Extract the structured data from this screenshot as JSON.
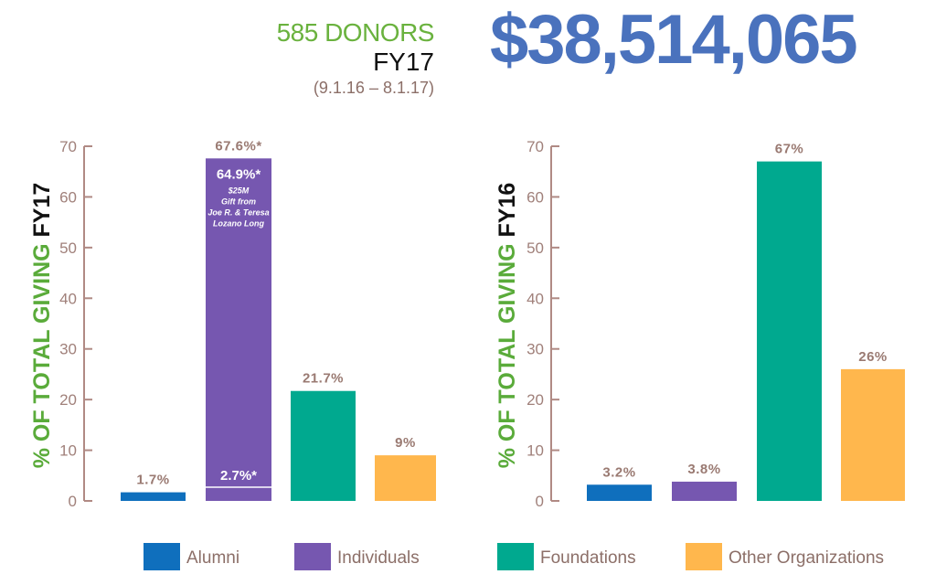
{
  "header": {
    "donors": "585 DONORS",
    "fiscal_year": "FY17",
    "date_range": "(9.1.16 – 8.1.17)",
    "total": "$38,514,065"
  },
  "colors": {
    "Alumni": "#0f6fbd",
    "Individuals": "#7657b0",
    "Foundations": "#00a98f",
    "Other Organizations": "#ffb74d",
    "axis": "#b08a84",
    "green_text": "#5aab3a"
  },
  "chart_data": [
    {
      "type": "bar",
      "title": "FY17",
      "ylabel_prefix": "% OF TOTAL GIVING",
      "ylabel_suffix": "FY17",
      "categories": [
        "Alumni",
        "Individuals",
        "Foundations",
        "Other Organizations"
      ],
      "values": [
        1.7,
        67.6,
        21.7,
        9
      ],
      "labels": [
        "1.7%",
        "67.6%*",
        "21.7%",
        "9%"
      ],
      "split": {
        "category": "Individuals",
        "base_value": 2.7,
        "base_label": "2.7%*",
        "gift_value": 64.9,
        "gift_label": "64.9%*",
        "gift_note": [
          "$25M",
          "Gift from",
          "Joe R. & Teresa",
          "Lozano Long"
        ]
      },
      "ylim": [
        0,
        70
      ],
      "yticks": [
        0,
        10,
        20,
        30,
        40,
        50,
        60,
        70
      ],
      "grid": false
    },
    {
      "type": "bar",
      "title": "FY16",
      "ylabel_prefix": "% OF TOTAL GIVING",
      "ylabel_suffix": "FY16",
      "categories": [
        "Alumni",
        "Individuals",
        "Foundations",
        "Other Organizations"
      ],
      "values": [
        3.2,
        3.8,
        67,
        26
      ],
      "labels": [
        "3.2%",
        "3.8%",
        "67%",
        "26%"
      ],
      "ylim": [
        0,
        70
      ],
      "yticks": [
        0,
        10,
        20,
        30,
        40,
        50,
        60,
        70
      ],
      "grid": false
    }
  ],
  "legend": {
    "position": "bottom",
    "items": [
      "Alumni",
      "Individuals",
      "Foundations",
      "Other Organizations"
    ]
  }
}
